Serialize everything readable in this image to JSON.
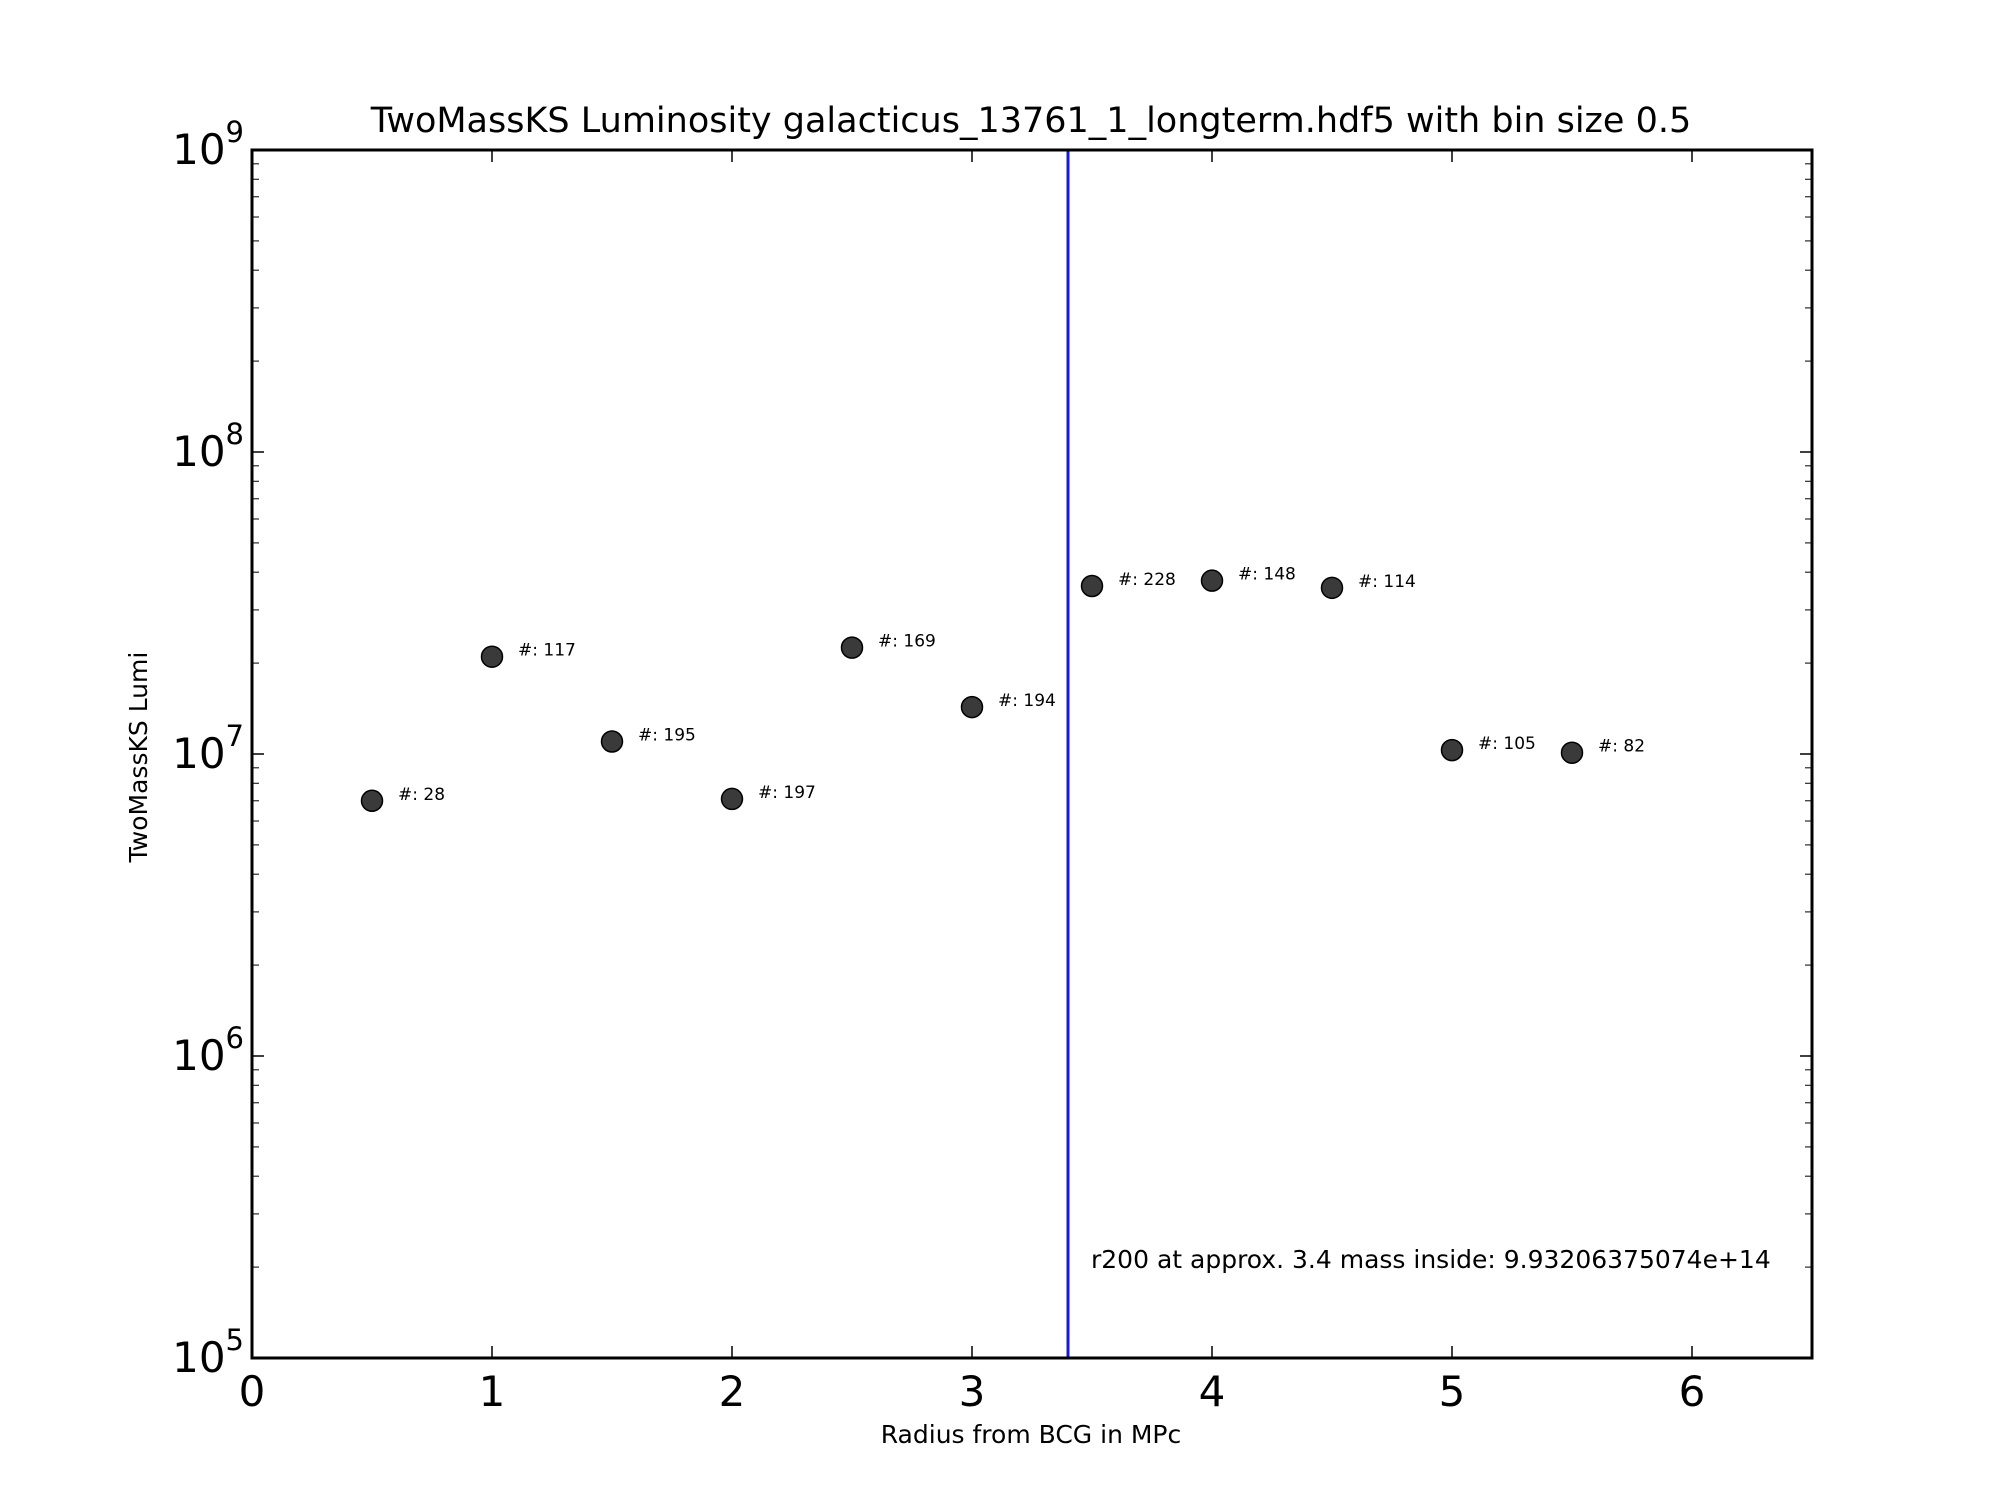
{
  "chart_data": {
    "type": "scatter",
    "title": "TwoMassKS Luminosity galacticus_13761_1_longterm.hdf5 with bin size 0.5",
    "xlabel": "Radius from BCG in MPc",
    "ylabel": "TwoMassKS Lumi",
    "xlim": [
      0,
      6.5
    ],
    "ylim": [
      100000,
      1000000000
    ],
    "yscale": "log",
    "grid": false,
    "x_ticks": [
      0,
      1,
      2,
      3,
      4,
      5,
      6
    ],
    "x_tick_labels": [
      "0",
      "1",
      "2",
      "3",
      "4",
      "5",
      "6"
    ],
    "y_ticks": [
      100000,
      1000000,
      10000000,
      100000000,
      1000000000
    ],
    "y_tick_labels": [
      {
        "base": "10",
        "exp": "5"
      },
      {
        "base": "10",
        "exp": "6"
      },
      {
        "base": "10",
        "exp": "7"
      },
      {
        "base": "10",
        "exp": "8"
      },
      {
        "base": "10",
        "exp": "9"
      }
    ],
    "points": [
      {
        "x": 0.5,
        "y": 7000000,
        "label": "#: 28"
      },
      {
        "x": 1.0,
        "y": 21000000,
        "label": "#: 117"
      },
      {
        "x": 1.5,
        "y": 11000000,
        "label": "#: 195"
      },
      {
        "x": 2.0,
        "y": 7100000,
        "label": "#: 197"
      },
      {
        "x": 2.5,
        "y": 22500000,
        "label": "#: 169"
      },
      {
        "x": 3.0,
        "y": 14300000,
        "label": "#: 194"
      },
      {
        "x": 3.5,
        "y": 36000000,
        "label": "#: 228"
      },
      {
        "x": 4.0,
        "y": 37500000,
        "label": "#: 148"
      },
      {
        "x": 4.5,
        "y": 35500000,
        "label": "#: 114"
      },
      {
        "x": 5.0,
        "y": 10300000,
        "label": "#: 105"
      },
      {
        "x": 5.5,
        "y": 10100000,
        "label": "#: 82"
      }
    ],
    "vline": {
      "x": 3.4,
      "color": "#1a1ad6"
    },
    "annotation": "r200 at approx. 3.4 mass inside: 9.93206375074e+14",
    "marker_color": "#3a3a3a"
  }
}
